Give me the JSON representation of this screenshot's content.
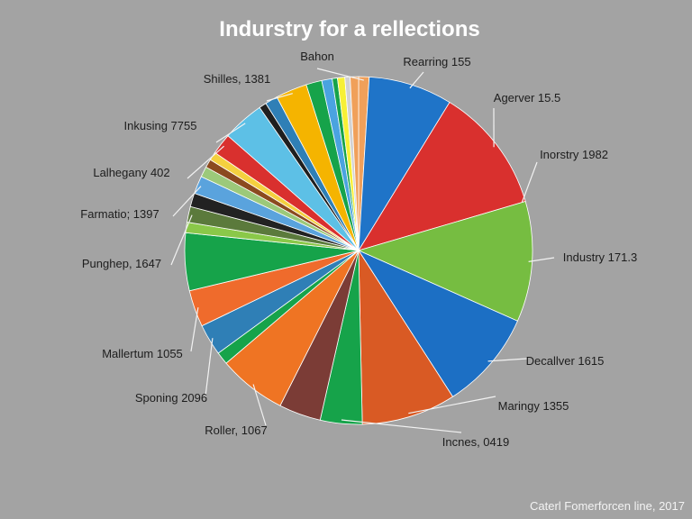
{
  "chart_data": {
    "type": "pie",
    "title": "Indurstry for a rellections",
    "source": "Caterl Fomerforcen line, 2017",
    "slices": [
      {
        "label": "Bahon",
        "value": 1.0,
        "color": "#f0a05a"
      },
      {
        "label": "Rearring 155",
        "value": 8.0,
        "color": "#1f74c8"
      },
      {
        "label": "Agerver 15.5",
        "value": 12.0,
        "color": "#d9302e"
      },
      {
        "label": "Inorstry 1982",
        "value": 0.0,
        "color": "#d9302e"
      },
      {
        "label": "Industry 171.3",
        "value": 11.5,
        "color": "#76bd41"
      },
      {
        "label": "Decallver 1615",
        "value": 9.5,
        "color": "#1c6fc4"
      },
      {
        "label": "Maringy 1355",
        "value": 9.0,
        "color": "#d95a24"
      },
      {
        "label": "Incnes, 0419",
        "value": 4.0,
        "color": "#16a34a"
      },
      {
        "label": "",
        "value": 4.0,
        "color": "#7b3c36"
      },
      {
        "label": "Roller, 1067",
        "value": 6.5,
        "color": "#ef7423"
      },
      {
        "label": "",
        "value": 1.2,
        "color": "#16a34a"
      },
      {
        "label": "Sponing 2096",
        "value": 3.0,
        "color": "#2f7fb6"
      },
      {
        "label": "Mallertum 1055",
        "value": 3.5,
        "color": "#ef6b2c"
      },
      {
        "label": "",
        "value": 5.5,
        "color": "#16a34a"
      },
      {
        "label": "",
        "value": 1.0,
        "color": "#8ac849"
      },
      {
        "label": "Punghep, 1647",
        "value": 1.5,
        "color": "#5b7a3c"
      },
      {
        "label": "",
        "value": 1.3,
        "color": "#222222"
      },
      {
        "label": "Farmatio; 1397",
        "value": 1.7,
        "color": "#5aa3dd"
      },
      {
        "label": "",
        "value": 1.0,
        "color": "#9cc97a"
      },
      {
        "label": "",
        "value": 0.8,
        "color": "#8b4a1f"
      },
      {
        "label": "",
        "value": 0.8,
        "color": "#f4d03f"
      },
      {
        "label": "Lalhegany 402",
        "value": 2.0,
        "color": "#d9302e"
      },
      {
        "label": "Inkusing 7755",
        "value": 4.0,
        "color": "#5dc0e6"
      },
      {
        "label": "",
        "value": 0.7,
        "color": "#1f1f1f"
      },
      {
        "label": "",
        "value": 1.2,
        "color": "#2f7fb6"
      },
      {
        "label": "Shilles, 1381",
        "value": 3.0,
        "color": "#f5b400"
      },
      {
        "label": "",
        "value": 1.5,
        "color": "#16a34a"
      },
      {
        "label": "",
        "value": 1.0,
        "color": "#4aa3e0"
      },
      {
        "label": "",
        "value": 0.5,
        "color": "#16a34a"
      },
      {
        "label": "",
        "value": 0.7,
        "color": "#f7f035"
      },
      {
        "label": "",
        "value": 0.5,
        "color": "#d2d2d2"
      },
      {
        "label": "",
        "value": 0.8,
        "color": "#f0a05a"
      }
    ]
  }
}
